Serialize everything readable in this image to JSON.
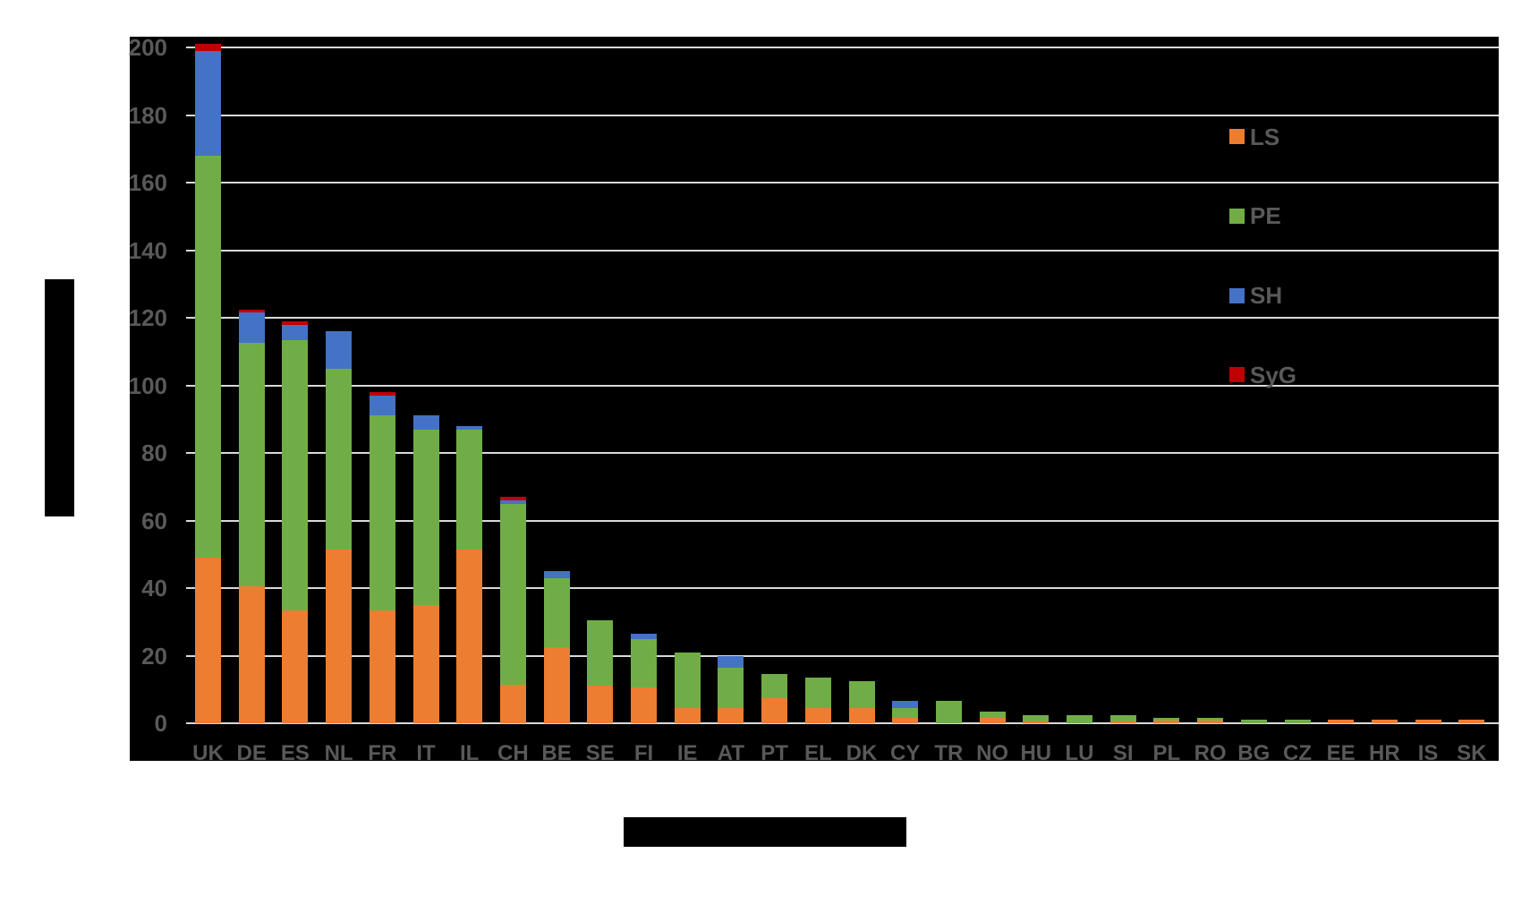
{
  "page": {
    "background": "#ffffff"
  },
  "chart": {
    "plot_background": "#000000",
    "gridline_color": "#d9d9d9",
    "tick_label_color": "#595959",
    "legend_label_color": "#595959"
  },
  "chart_data": {
    "type": "bar",
    "stacked": true,
    "title": "",
    "xlabel": "",
    "ylabel": "",
    "categories": [
      "UK",
      "DE",
      "ES",
      "NL",
      "FR",
      "IT",
      "IL",
      "CH",
      "BE",
      "SE",
      "FI",
      "IE",
      "AT",
      "PT",
      "EL",
      "DK",
      "CY",
      "TR",
      "NO",
      "HU",
      "LU",
      "SI",
      "PL",
      "RO",
      "BG",
      "CZ",
      "EE",
      "HR",
      "IS",
      "SK"
    ],
    "series": [
      {
        "name": "LS",
        "color": "#ED7D31",
        "values": [
          49,
          40.5,
          33.5,
          51.5,
          33.5,
          35,
          51.5,
          11.5,
          22.5,
          11,
          10.5,
          4.5,
          4.5,
          7.5,
          4.5,
          4.5,
          1.5,
          0,
          1.5,
          0.5,
          0,
          0.5,
          0.75,
          0.75,
          0,
          0,
          1,
          1,
          1,
          1
        ]
      },
      {
        "name": "PE",
        "color": "#70AD47",
        "values": [
          119,
          72,
          80,
          53.5,
          57.5,
          52,
          35.5,
          53.5,
          20.5,
          19.5,
          14.5,
          16.5,
          12,
          7,
          9,
          8,
          3,
          6.5,
          2,
          2,
          2.5,
          2,
          0.75,
          0.75,
          1,
          1,
          0,
          0,
          0,
          0
        ]
      },
      {
        "name": "SH",
        "color": "#4472C4",
        "values": [
          31,
          9,
          4.5,
          11,
          6,
          4,
          1,
          1,
          2,
          0,
          1.5,
          0,
          3.5,
          0,
          0,
          0,
          2,
          0,
          0,
          0,
          0,
          0,
          0,
          0,
          0,
          0,
          0,
          0,
          0,
          0
        ]
      },
      {
        "name": "SyG",
        "color": "#C00000",
        "values": [
          2,
          1,
          1,
          0,
          1,
          0,
          0,
          1,
          0,
          0,
          0,
          0,
          0,
          0,
          0,
          0,
          0,
          0,
          0,
          0,
          0,
          0,
          0,
          0,
          0,
          0,
          0,
          0,
          0,
          0
        ]
      }
    ],
    "ylim": [
      0,
      200
    ],
    "ytick_step": 20,
    "yticks": [
      0,
      20,
      40,
      60,
      80,
      100,
      120,
      140,
      160,
      180,
      200
    ],
    "y_tick_labels": [
      "0",
      "20",
      "40",
      "60",
      "80",
      "100",
      "120",
      "140",
      "160",
      "180",
      "200"
    ],
    "grid": true,
    "legend": [
      "LS",
      "PE",
      "SH",
      "SyG"
    ],
    "legend_position": "inside-top-right"
  },
  "redactions": {
    "y_axis_title_block": "redacted",
    "x_axis_title_block": "redacted"
  }
}
